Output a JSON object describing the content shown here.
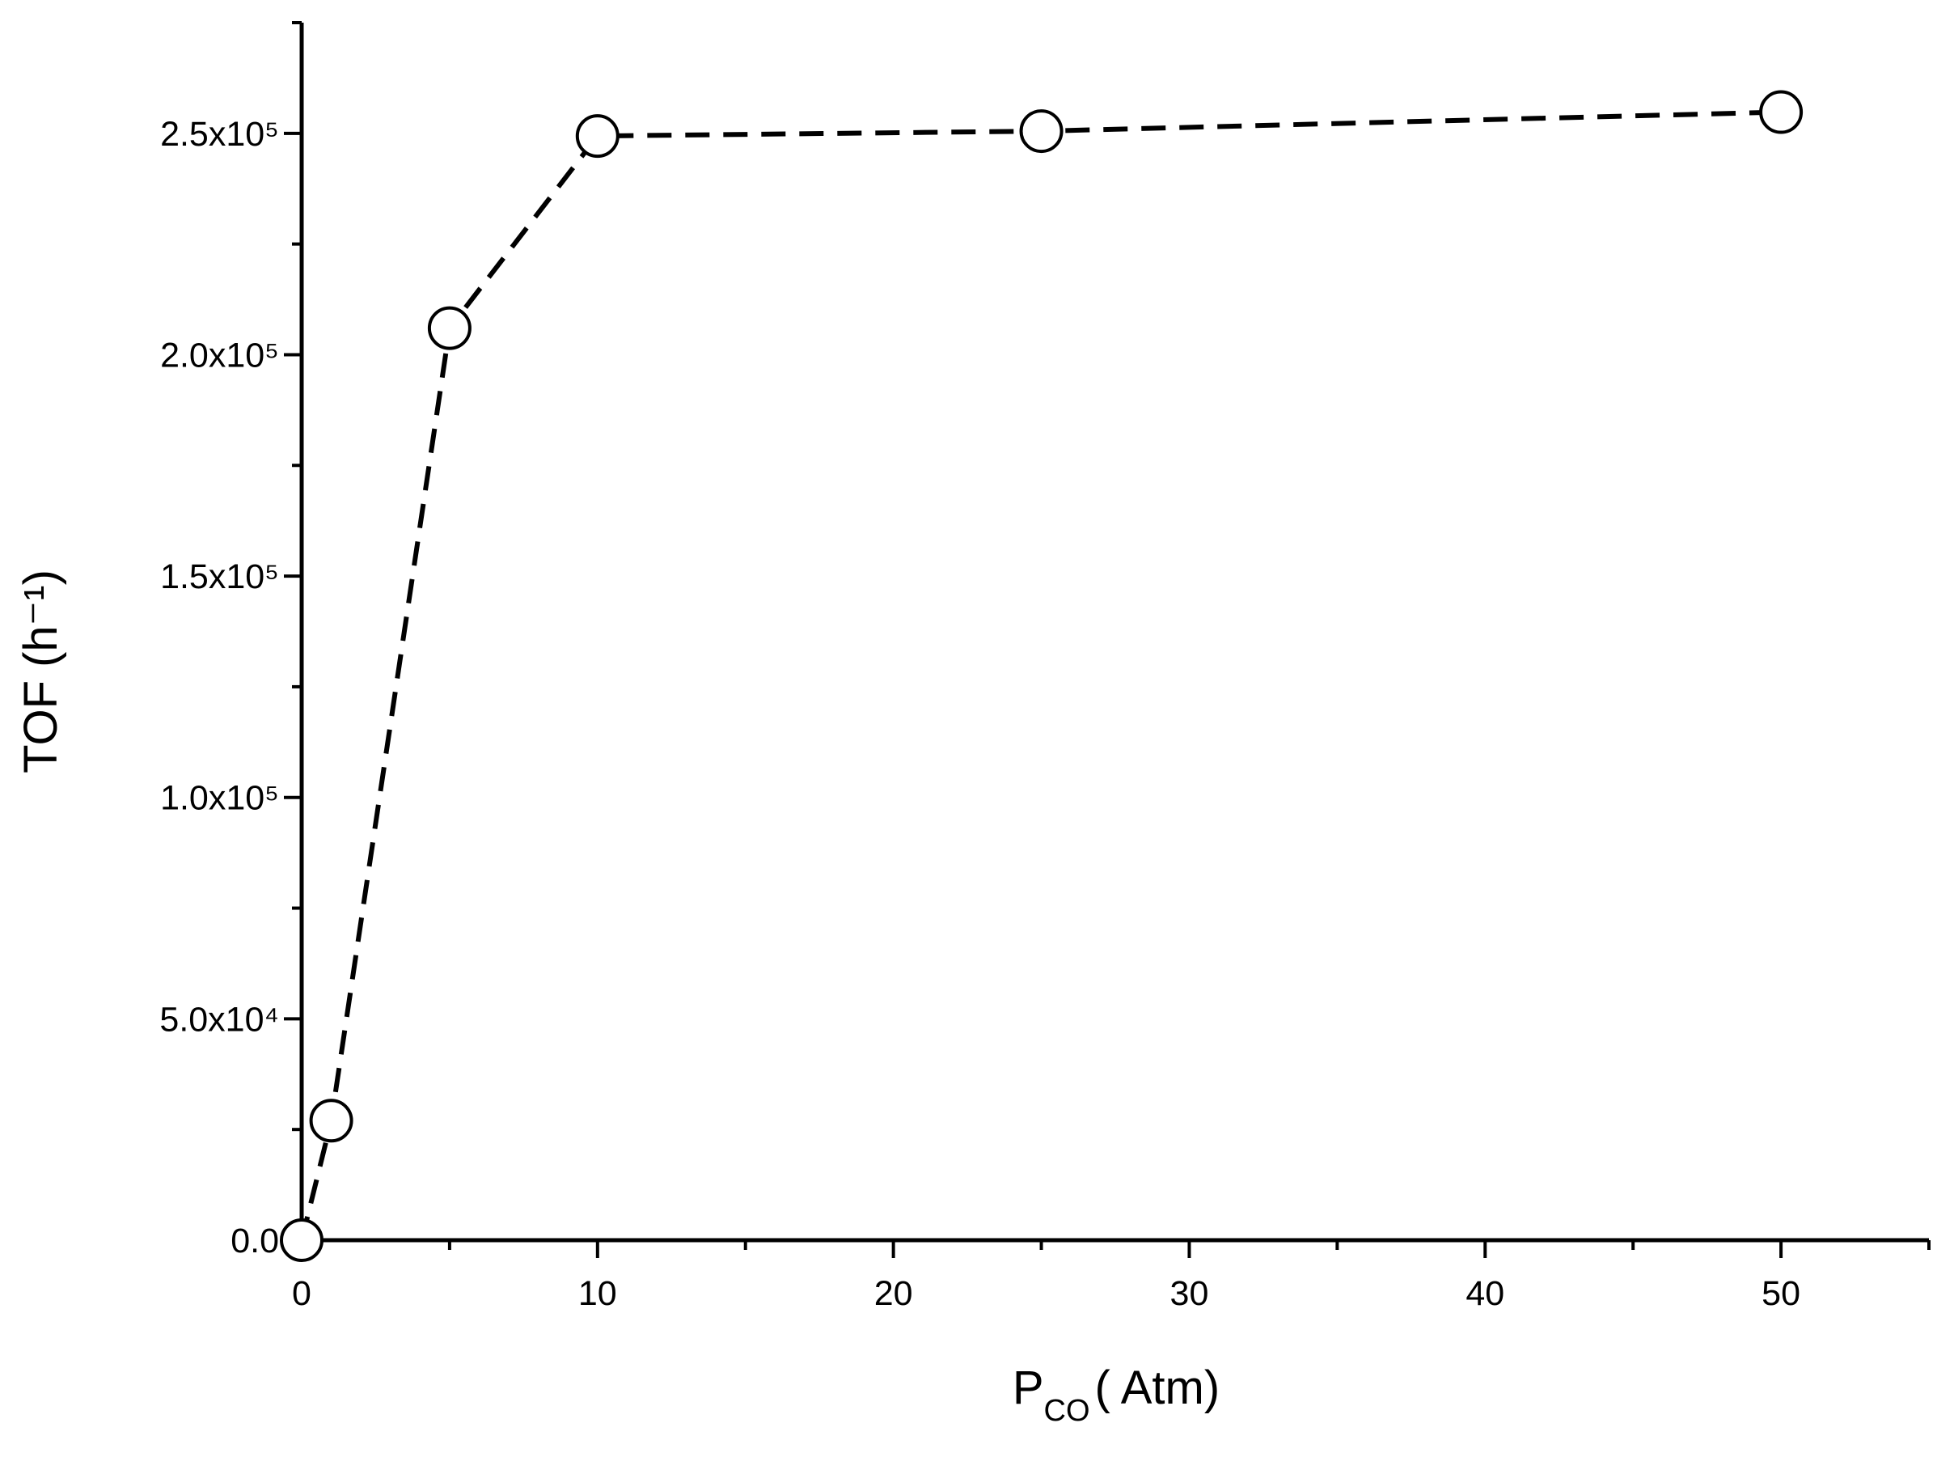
{
  "chart_data": {
    "type": "line",
    "x": [
      0,
      1,
      5,
      10,
      25,
      50
    ],
    "series": [
      {
        "color": "#000000",
        "values": [
          0,
          27000,
          206000,
          249400,
          250500,
          254800
        ]
      }
    ],
    "xlim": [
      0,
      55
    ],
    "ylim": [
      0,
      275000
    ],
    "xticks": [
      0,
      10,
      20,
      30,
      40,
      50
    ],
    "xminor": [
      5,
      15,
      25,
      35,
      45,
      55
    ],
    "yticks": [
      {
        "value": 0,
        "label": "0.0"
      },
      {
        "value": 50000,
        "label": "5.0x10⁴"
      },
      {
        "value": 100000,
        "label": "1.0x10⁵"
      },
      {
        "value": 150000,
        "label": "1.5x10⁵"
      },
      {
        "value": 200000,
        "label": "2.0x10⁵"
      },
      {
        "value": 250000,
        "label": "2.5x10⁵"
      }
    ],
    "yminor": [
      25000,
      75000,
      125000,
      175000,
      225000,
      275000
    ],
    "xlabel": [
      "P",
      "CO",
      "( Atm)"
    ],
    "ylabel": "TOF (h⁻¹)",
    "grid": false
  }
}
